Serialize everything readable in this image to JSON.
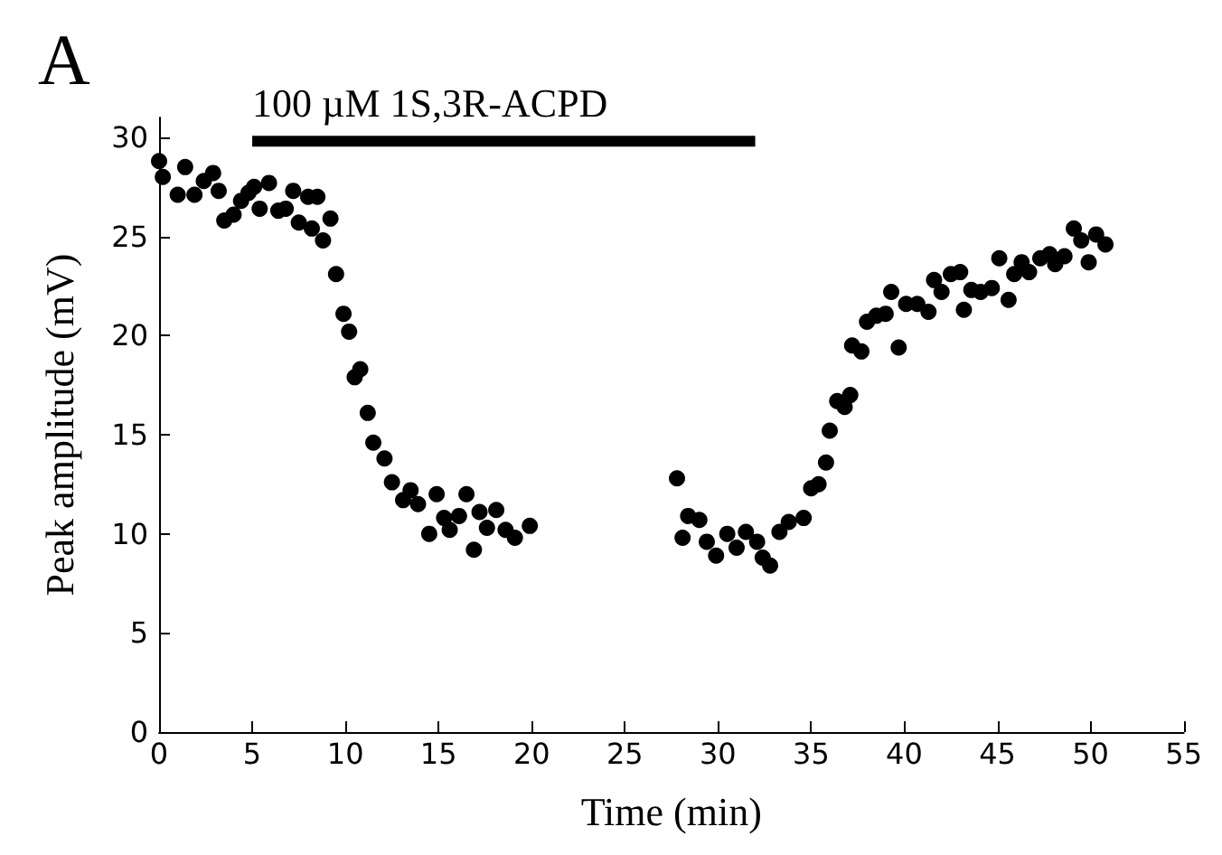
{
  "chart_data": {
    "type": "scatter",
    "title": "A",
    "xlabel": "Time (min)",
    "ylabel": "Peak amplitude (mV)",
    "xlim": [
      0,
      55
    ],
    "ylim": [
      0,
      31
    ],
    "xticks": [
      0,
      5,
      10,
      15,
      20,
      25,
      30,
      35,
      40,
      45,
      50,
      55
    ],
    "yticks": [
      0,
      5,
      10,
      15,
      20,
      25,
      30
    ],
    "grid": false,
    "marker": "circle",
    "series": [
      {
        "color": "#000000",
        "x": [
          0,
          0.2,
          1,
          1.4,
          1.9,
          2.4,
          2.9,
          3.2,
          3.5,
          4.0,
          4.4,
          4.8,
          5.1,
          5.4,
          5.9,
          6.4,
          6.8,
          7.2,
          7.5,
          8.0,
          8.2,
          8.5,
          8.8,
          9.2,
          9.5,
          9.9,
          10.2,
          10.5,
          10.8,
          11.2,
          11.5,
          12.1,
          12.5,
          13.1,
          13.5,
          13.9,
          14.5,
          14.9,
          15.3,
          15.6,
          16.1,
          16.5,
          16.9,
          17.2,
          17.6,
          18.1,
          18.6,
          19.1,
          19.9,
          27.8,
          28.1,
          28.4,
          29.0,
          29.4,
          29.9,
          30.5,
          31.0,
          31.5,
          32.1,
          32.4,
          32.8,
          33.3,
          33.8,
          34.6,
          35.0,
          35.4,
          35.8,
          36.0,
          36.4,
          36.8,
          37.1,
          37.2,
          37.7,
          38.0,
          38.5,
          39.0,
          39.3,
          39.7,
          40.1,
          40.7,
          41.3,
          41.6,
          42.0,
          42.5,
          43.0,
          43.2,
          43.6,
          44.1,
          44.7,
          45.1,
          45.6,
          45.9,
          46.3,
          46.7,
          47.3,
          47.8,
          48.1,
          48.6,
          49.1,
          49.5,
          49.9,
          50.3,
          50.8
        ],
        "values": [
          28.8,
          28.0,
          27.1,
          28.5,
          27.1,
          27.8,
          28.2,
          27.3,
          25.8,
          26.1,
          26.8,
          27.2,
          27.5,
          26.4,
          27.7,
          26.3,
          26.4,
          27.3,
          25.7,
          27.0,
          25.4,
          27.0,
          24.8,
          25.9,
          23.1,
          21.1,
          20.2,
          17.9,
          18.3,
          16.1,
          14.6,
          13.8,
          12.6,
          11.7,
          12.2,
          11.5,
          10.0,
          12.0,
          10.8,
          10.2,
          10.9,
          12.0,
          9.2,
          11.1,
          10.3,
          11.2,
          10.2,
          9.8,
          10.4,
          12.8,
          9.8,
          10.9,
          10.7,
          9.6,
          8.9,
          10.0,
          9.3,
          10.1,
          9.6,
          8.8,
          8.4,
          10.1,
          10.6,
          10.8,
          12.3,
          12.5,
          13.6,
          15.2,
          16.7,
          16.4,
          17.0,
          19.5,
          19.2,
          20.7,
          21.0,
          21.1,
          22.2,
          19.4,
          21.6,
          21.6,
          21.2,
          22.8,
          22.2,
          23.1,
          23.2,
          21.3,
          22.3,
          22.2,
          22.4,
          23.9,
          21.8,
          23.1,
          23.7,
          23.2,
          23.9,
          24.1,
          23.6,
          24.0,
          25.4,
          24.8,
          23.7,
          25.1,
          24.6
        ]
      },
      {
        "type": "line",
        "name": "100 µM 1S,3R-ACPD",
        "color": "#000000",
        "marker": "none",
        "x": [
          5,
          32
        ],
        "values": [
          29.8,
          29.8
        ]
      }
    ]
  }
}
